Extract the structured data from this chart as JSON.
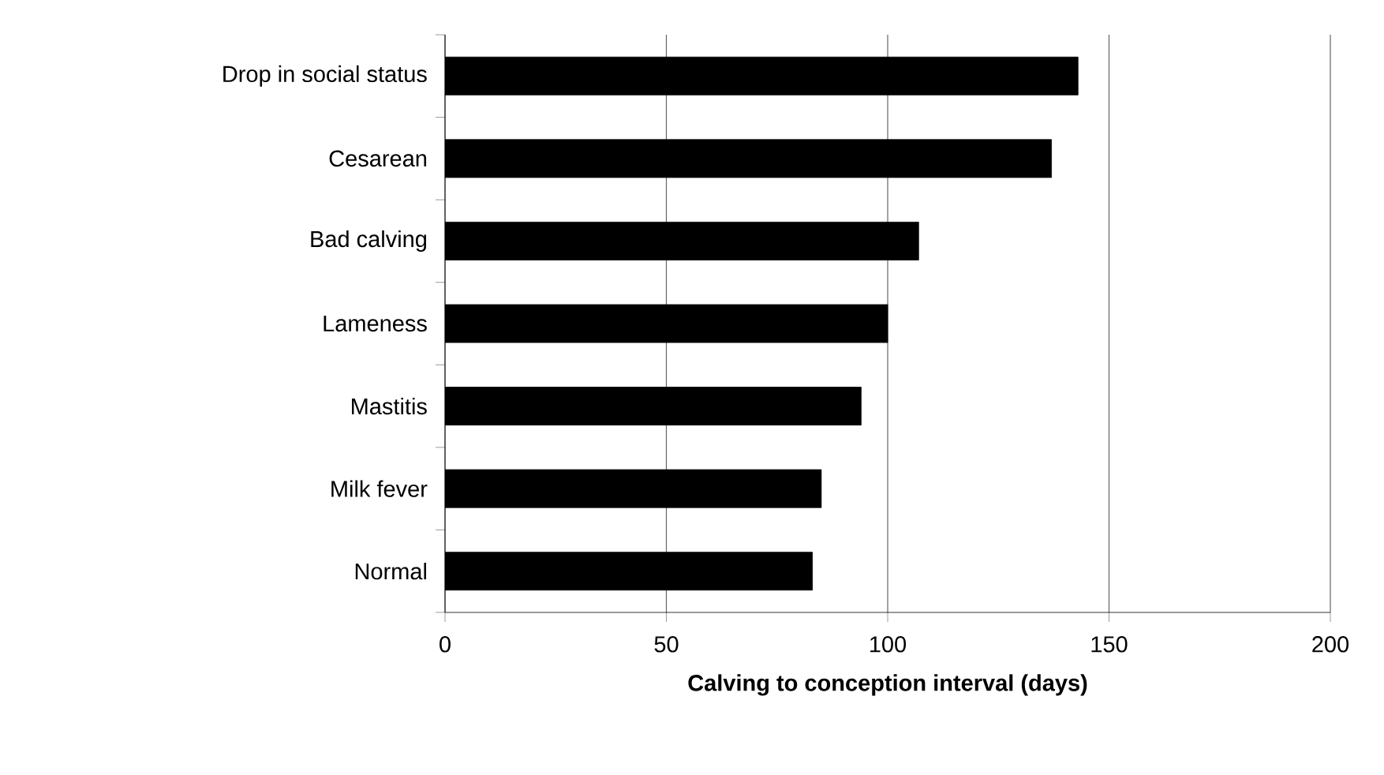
{
  "chart_data": {
    "type": "bar",
    "orientation": "horizontal",
    "xlabel": "Calving to conception interval (days)",
    "categories": [
      "Drop in social status",
      "Cesarean",
      "Bad calving",
      "Lameness",
      "Mastitis",
      "Milk fever",
      "Normal"
    ],
    "values": [
      143,
      137,
      107,
      100,
      94,
      85,
      83
    ],
    "color": "#000000",
    "xlim": [
      0,
      200
    ],
    "xticks": [
      0,
      50,
      100,
      150,
      200
    ],
    "grid": "x"
  }
}
